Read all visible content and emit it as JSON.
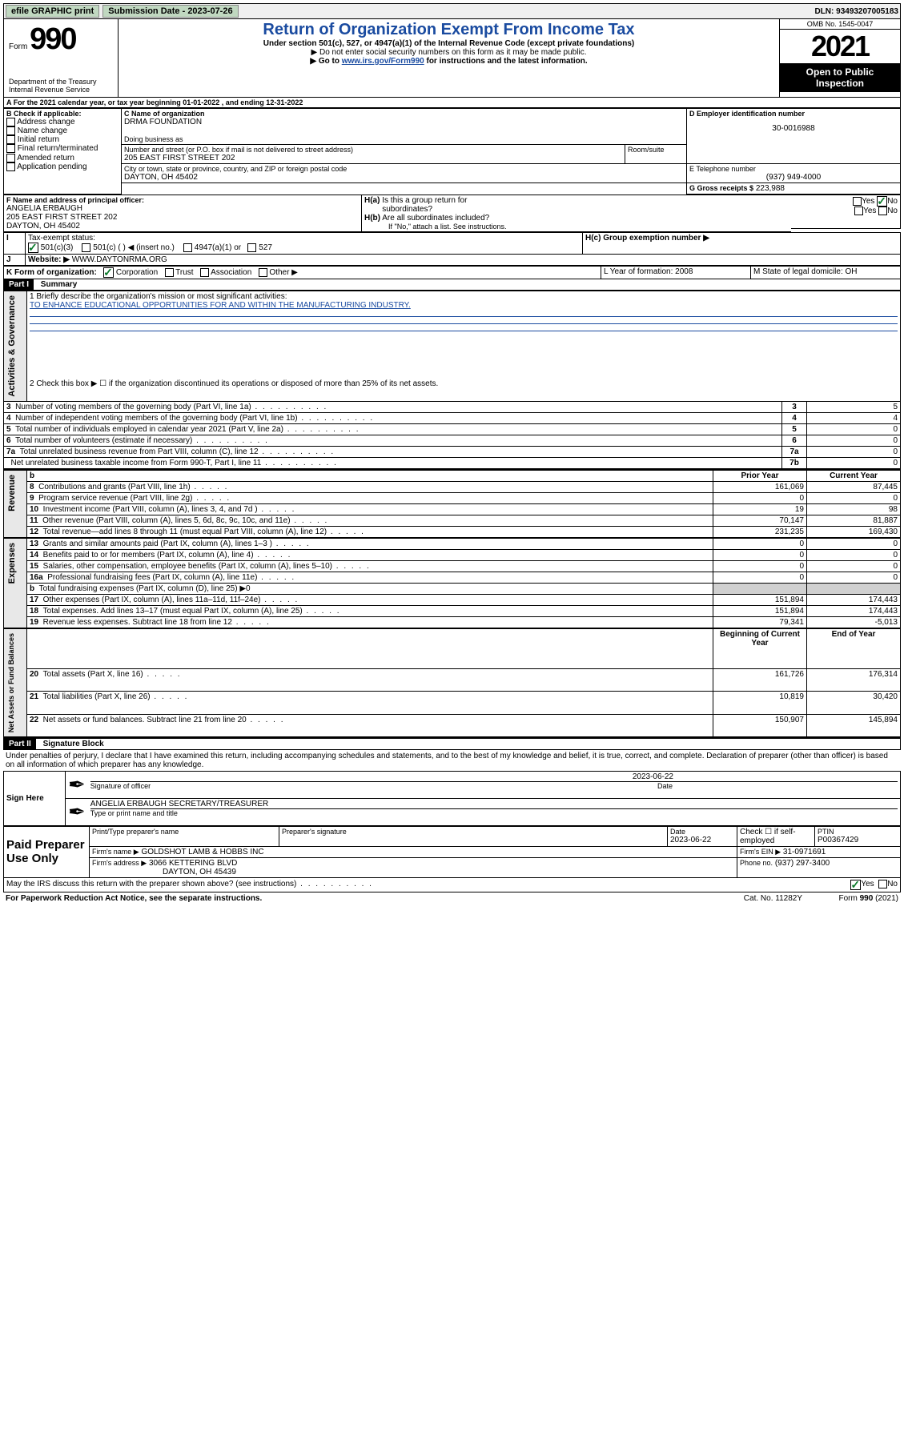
{
  "top_bar": {
    "btn1": "efile GRAPHIC print",
    "sub_label": "Submission Date - 2023-07-26",
    "dln_label": "DLN: 93493207005183"
  },
  "header": {
    "form_word": "Form",
    "form_num": "990",
    "title": "Return of Organization Exempt From Income Tax",
    "subtitle": "Under section 501(c), 527, or 4947(a)(1) of the Internal Revenue Code (except private foundations)",
    "note1": "▶ Do not enter social security numbers on this form as it may be made public.",
    "note2_pre": "▶ Go to ",
    "note2_link": "www.irs.gov/Form990",
    "note2_post": " for instructions and the latest information.",
    "omb": "OMB No. 1545-0047",
    "year": "2021",
    "open_public": "Open to Public Inspection",
    "dept": "Department of the Treasury Internal Revenue Service"
  },
  "line_a": "For the 2021 calendar year, or tax year beginning 01-01-2022   , and ending 12-31-2022",
  "box_b_label": "B Check if applicable:",
  "box_b": [
    "Address change",
    "Name change",
    "Initial return",
    "Final return/terminated",
    "Amended return",
    "Application pending"
  ],
  "c_label": "C Name of organization",
  "org_name": "DRMA FOUNDATION",
  "dba_label": "Doing business as",
  "addr_label": "Number and street (or P.O. box if mail is not delivered to street address)",
  "room_label": "Room/suite",
  "address": "205 EAST FIRST STREET 202",
  "city_label": "City or town, state or province, country, and ZIP or foreign postal code",
  "city": "DAYTON, OH  45402",
  "d_label": "D Employer identification number",
  "ein": "30-0016988",
  "e_label": "E Telephone number",
  "phone": "(937) 949-4000",
  "g_label": "G Gross receipts $",
  "g_val": "223,988",
  "f_label": "F  Name and address of principal officer:",
  "officer_name": "ANGELIA ERBAUGH",
  "officer_addr": "205 EAST FIRST STREET 202",
  "officer_city": "DAYTON, OH  45402",
  "ha_label": "H(a)  Is this a group return for subordinates?",
  "hb_label": "H(b)  Are all subordinates included?",
  "hb_note": "If \"No,\" attach a list. See instructions.",
  "hc_label": "H(c)  Group exemption number ▶",
  "yes": "Yes",
  "no": "No",
  "i_label": "Tax-exempt status:",
  "i_opts": [
    "501(c)(3)",
    "501(c) (  ) ◀ (insert no.)",
    "4947(a)(1) or",
    "527"
  ],
  "j_label": "Website: ▶",
  "website": "WWW.DAYTONRMA.ORG",
  "k_label": "K Form of organization:",
  "k_opts": [
    "Corporation",
    "Trust",
    "Association",
    "Other ▶"
  ],
  "l_label": "L Year of formation: 2008",
  "m_label": "M State of legal domicile: OH",
  "part1": "Part I",
  "part1_title": "Summary",
  "sections": {
    "ag": "Activities & Governance",
    "rev": "Revenue",
    "exp": "Expenses",
    "na": "Net Assets or Fund Balances"
  },
  "line1_label": "1  Briefly describe the organization's mission or most significant activities:",
  "line1_text": "TO ENHANCE EDUCATIONAL OPPORTUNITIES FOR AND WITHIN THE MANUFACTURING INDUSTRY.",
  "line2": "2   Check this box ▶ ☐  if the organization discontinued its operations or disposed of more than 25% of its net assets.",
  "rows_ag": [
    {
      "n": "3",
      "t": "Number of voting members of the governing body (Part VI, line 1a)",
      "l": "3",
      "v": "5"
    },
    {
      "n": "4",
      "t": "Number of independent voting members of the governing body (Part VI, line 1b)",
      "l": "4",
      "v": "4"
    },
    {
      "n": "5",
      "t": "Total number of individuals employed in calendar year 2021 (Part V, line 2a)",
      "l": "5",
      "v": "0"
    },
    {
      "n": "6",
      "t": "Total number of volunteers (estimate if necessary)",
      "l": "6",
      "v": "0"
    },
    {
      "n": "7a",
      "t": "Total unrelated business revenue from Part VIII, column (C), line 12",
      "l": "7a",
      "v": "0"
    },
    {
      "n": "",
      "t": "Net unrelated business taxable income from Form 990-T, Part I, line 11",
      "l": "7b",
      "v": "0"
    }
  ],
  "col_headers": {
    "b": "b",
    "prior": "Prior Year",
    "current": "Current Year"
  },
  "rows_rev": [
    {
      "n": "8",
      "t": "Contributions and grants (Part VIII, line 1h)",
      "p": "161,069",
      "c": "87,445"
    },
    {
      "n": "9",
      "t": "Program service revenue (Part VIII, line 2g)",
      "p": "0",
      "c": "0"
    },
    {
      "n": "10",
      "t": "Investment income (Part VIII, column (A), lines 3, 4, and 7d )",
      "p": "19",
      "c": "98"
    },
    {
      "n": "11",
      "t": "Other revenue (Part VIII, column (A), lines 5, 6d, 8c, 9c, 10c, and 11e)",
      "p": "70,147",
      "c": "81,887"
    },
    {
      "n": "12",
      "t": "Total revenue—add lines 8 through 11 (must equal Part VIII, column (A), line 12)",
      "p": "231,235",
      "c": "169,430"
    }
  ],
  "rows_exp": [
    {
      "n": "13",
      "t": "Grants and similar amounts paid (Part IX, column (A), lines 1–3 )",
      "p": "0",
      "c": "0"
    },
    {
      "n": "14",
      "t": "Benefits paid to or for members (Part IX, column (A), line 4)",
      "p": "0",
      "c": "0"
    },
    {
      "n": "15",
      "t": "Salaries, other compensation, employee benefits (Part IX, column (A), lines 5–10)",
      "p": "0",
      "c": "0"
    },
    {
      "n": "16a",
      "t": "Professional fundraising fees (Part IX, column (A), line 11e)",
      "p": "0",
      "c": "0"
    },
    {
      "n": "b",
      "t": "Total fundraising expenses (Part IX, column (D), line 25) ▶0",
      "p": "",
      "c": "",
      "gray": true
    },
    {
      "n": "17",
      "t": "Other expenses (Part IX, column (A), lines 11a–11d, 11f–24e)",
      "p": "151,894",
      "c": "174,443"
    },
    {
      "n": "18",
      "t": "Total expenses. Add lines 13–17 (must equal Part IX, column (A), line 25)",
      "p": "151,894",
      "c": "174,443"
    },
    {
      "n": "19",
      "t": "Revenue less expenses. Subtract line 18 from line 12",
      "p": "79,341",
      "c": "-5,013"
    }
  ],
  "col_headers2": {
    "begin": "Beginning of Current Year",
    "end": "End of Year"
  },
  "rows_na": [
    {
      "n": "20",
      "t": "Total assets (Part X, line 16)",
      "p": "161,726",
      "c": "176,314"
    },
    {
      "n": "21",
      "t": "Total liabilities (Part X, line 26)",
      "p": "10,819",
      "c": "30,420"
    },
    {
      "n": "22",
      "t": "Net assets or fund balances. Subtract line 21 from line 20",
      "p": "150,907",
      "c": "145,894"
    }
  ],
  "part2": "Part II",
  "part2_title": "Signature Block",
  "penalties": "Under penalties of perjury, I declare that I have examined this return, including accompanying schedules and statements, and to the best of my knowledge and belief, it is true, correct, and complete. Declaration of preparer (other than officer) is based on all information of which preparer has any knowledge.",
  "sign_here": "Sign Here",
  "sig_date": "2023-06-22",
  "sig_officer_label": "Signature of officer",
  "sig_date_label": "Date",
  "sig_name": "ANGELIA ERBAUGH  SECRETARY/TREASURER",
  "sig_name_label": "Type or print name and title",
  "paid_prep": "Paid Preparer Use Only",
  "prep_name_label": "Print/Type preparer's name",
  "prep_sig_label": "Preparer's signature",
  "prep_date_label": "Date",
  "prep_date": "2023-06-22",
  "prep_check_label": "Check ☐ if self-employed",
  "ptin_label": "PTIN",
  "ptin": "P00367429",
  "firm_name_label": "Firm's name    ▶",
  "firm_name": "GOLDSHOT LAMB & HOBBS INC",
  "firm_ein_label": "Firm's EIN ▶",
  "firm_ein": "31-0971691",
  "firm_addr_label": "Firm's address ▶",
  "firm_addr": "3066 KETTERING BLVD",
  "firm_city": "DAYTON, OH  45439",
  "firm_phone_label": "Phone no.",
  "firm_phone": "(937) 297-3400",
  "irs_discuss": "May the IRS discuss this return with the preparer shown above? (see instructions)",
  "paperwork": "For Paperwork Reduction Act Notice, see the separate instructions.",
  "cat_no": "Cat. No. 11282Y",
  "form_footer": "Form 990 (2021)"
}
